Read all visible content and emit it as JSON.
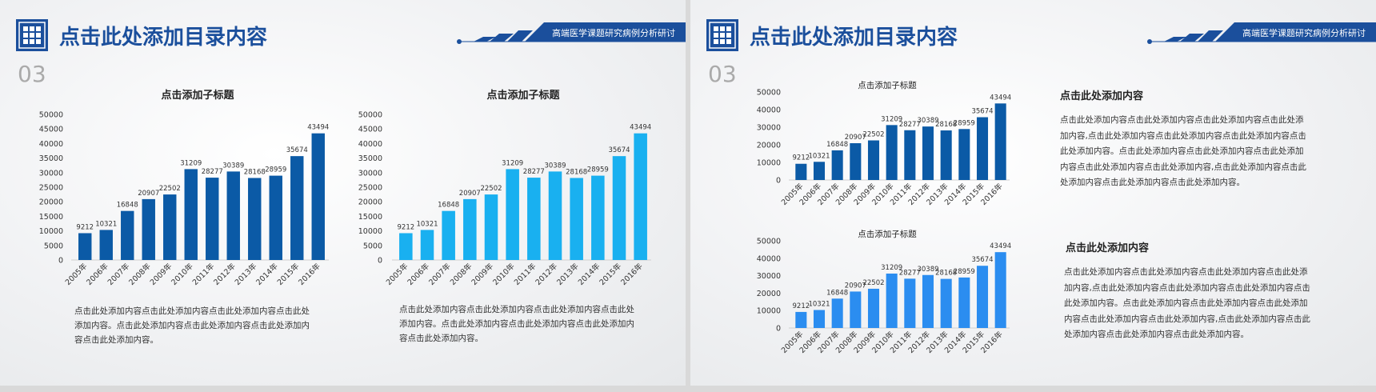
{
  "slides": [
    {
      "title": "点击此处添加目录内容",
      "number": "03",
      "tagline": "高端医学课题研究病例分析研讨",
      "captions": [
        "点击此处添加内容点击此处添加内容点击此处添加内容点击此处添加内容。点击此处添加内容点击此处添加内容点击此处添加内容点击此处添加内容。",
        "点击此处添加内容点击此处添加内容点击此处添加内容点击此处添加内容。点击此处添加内容点击此处添加内容点击此处添加内容点击此处添加内容。"
      ]
    },
    {
      "title": "点击此处添加目录内容",
      "number": "03",
      "tagline": "高端医学课题研究病例分析研讨",
      "notes": [
        {
          "heading": "点击此处添加内容",
          "body": "点击此处添加内容点击此处添加内容点击此处添加内容点击此处添加内容,点击此处添加内容点击此处添加内容点击此处添加内容点击此处添加内容。点击此处添加内容点击此处添加内容点击此处添加内容点击此处添加内容点击此处添加内容,点击此处添加内容点击此处添加内容点击此处添加内容点击此处添加内容。"
        },
        {
          "heading": "点击此处添加内容",
          "body": "点击此处添加内容点击此处添加内容点击此处添加内容点击此处添加内容,点击此处添加内容点击此处添加内容点击此处添加内容点击此处添加内容。点击此处添加内容点击此处添加内容点击此处添加内容点击此处添加内容点击此处添加内容,点击此处添加内容点击此处添加内容点击此处添加内容点击此处添加内容。"
        }
      ]
    }
  ],
  "chart_data": [
    {
      "type": "bar",
      "title": "点击添加子标题",
      "categories": [
        "2005年",
        "2006年",
        "2007年",
        "2008年",
        "2009年",
        "2010年",
        "2011年",
        "2012年",
        "2013年",
        "2014年",
        "2015年",
        "2016年"
      ],
      "values": [
        9212,
        10321,
        16848,
        20907,
        22502,
        31209,
        28277,
        30389,
        28168,
        28959,
        35674,
        43494
      ],
      "color": "#0b5aa6",
      "ylim": [
        0,
        50000
      ],
      "yticks": [
        0,
        5000,
        10000,
        15000,
        20000,
        25000,
        30000,
        35000,
        40000,
        45000,
        50000
      ]
    },
    {
      "type": "bar",
      "title": "点击添加子标题",
      "categories": [
        "2005年",
        "2006年",
        "2007年",
        "2008年",
        "2009年",
        "2010年",
        "2011年",
        "2012年",
        "2013年",
        "2014年",
        "2015年",
        "2016年"
      ],
      "values": [
        9212,
        10321,
        16848,
        20907,
        22502,
        31209,
        28277,
        30389,
        28168,
        28959,
        35674,
        43494
      ],
      "color": "#19b0f0",
      "ylim": [
        0,
        50000
      ],
      "yticks": [
        0,
        5000,
        10000,
        15000,
        20000,
        25000,
        30000,
        35000,
        40000,
        45000,
        50000
      ]
    },
    {
      "type": "bar",
      "title": "点击添加子标题",
      "categories": [
        "2005年",
        "2006年",
        "2007年",
        "2008年",
        "2009年",
        "2010年",
        "2011年",
        "2012年",
        "2013年",
        "2014年",
        "2015年",
        "2016年"
      ],
      "values": [
        9212,
        10321,
        16848,
        20907,
        22502,
        31209,
        28277,
        30389,
        28168,
        28959,
        35674,
        43494
      ],
      "color": "#0b5aa6",
      "ylim": [
        0,
        50000
      ],
      "yticks": [
        0,
        10000,
        20000,
        30000,
        40000,
        50000
      ]
    },
    {
      "type": "bar",
      "title": "点击添加子标题",
      "categories": [
        "2005年",
        "2006年",
        "2007年",
        "2008年",
        "2009年",
        "2010年",
        "2011年",
        "2012年",
        "2013年",
        "2014年",
        "2015年",
        "2016年"
      ],
      "values": [
        9212,
        10321,
        16848,
        20907,
        22502,
        31209,
        28277,
        30389,
        28168,
        28959,
        35674,
        43494
      ],
      "color": "#2b8df0",
      "ylim": [
        0,
        50000
      ],
      "yticks": [
        0,
        10000,
        20000,
        30000,
        40000,
        50000
      ]
    }
  ]
}
